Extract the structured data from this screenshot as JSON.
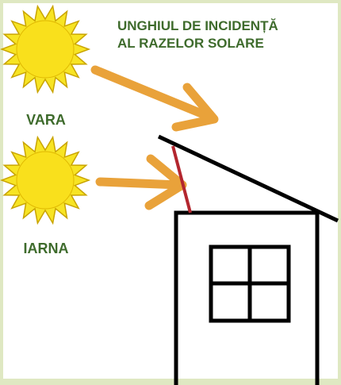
{
  "title": {
    "lines": [
      "UNGHIUL DE INCIDENȚĂ",
      "AL RAZELOR SOLARE"
    ]
  },
  "labels": {
    "summer": "VARA",
    "winter": "IARNA"
  }
}
